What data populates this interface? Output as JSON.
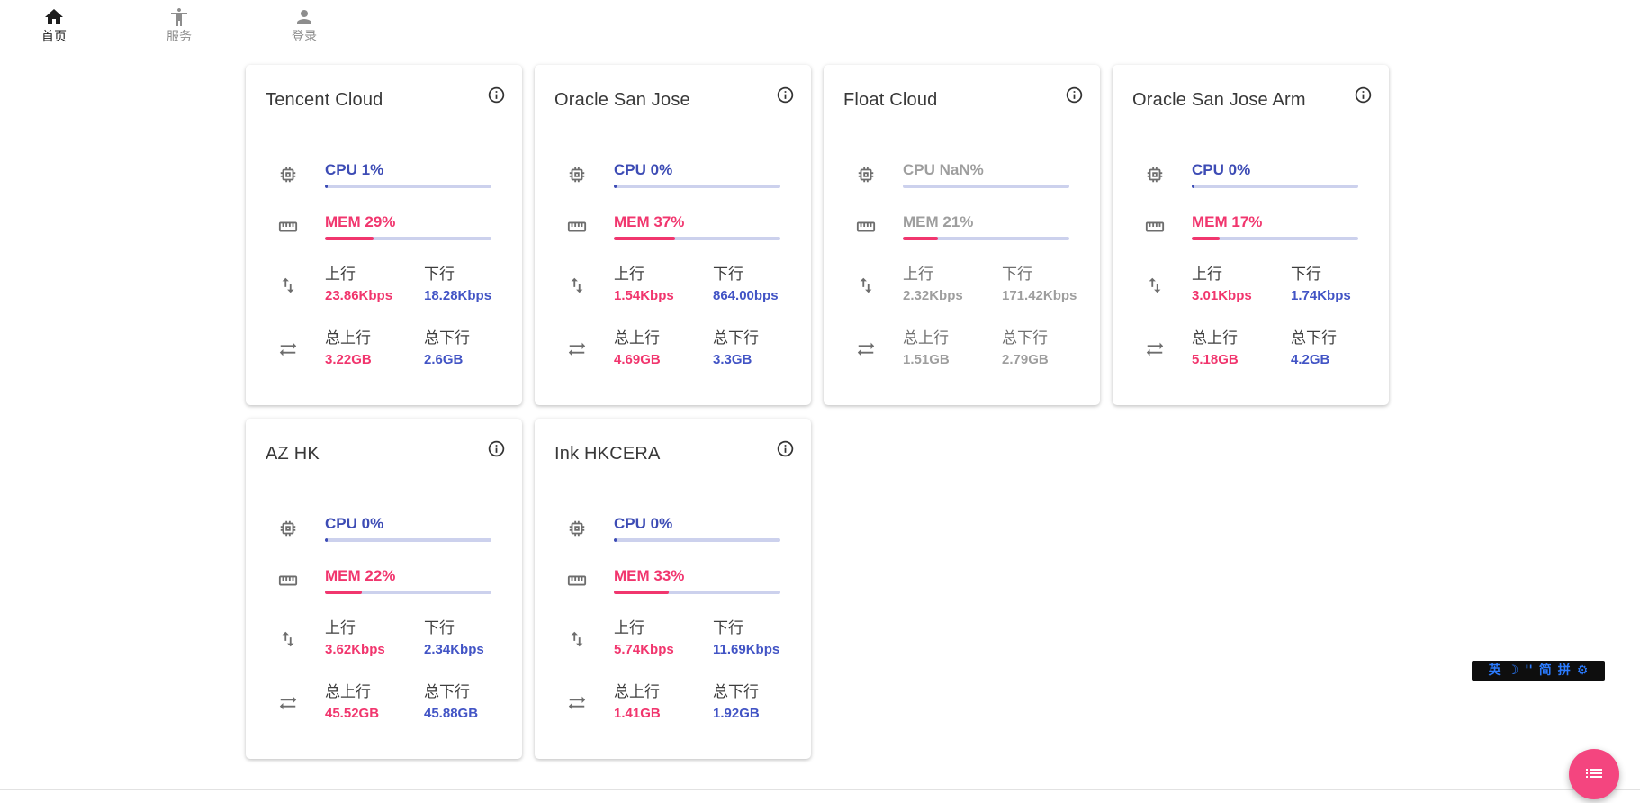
{
  "nav": {
    "home": {
      "label": "首页"
    },
    "services": {
      "label": "服务"
    },
    "login": {
      "label": "登录"
    }
  },
  "labels": {
    "up": "上行",
    "down": "下行",
    "total_up": "总上行",
    "total_down": "总下行"
  },
  "colors": {
    "accent_blue": "#3d4cb5",
    "value_blue": "#4254c5",
    "accent_pink": "#f1366e",
    "offline_gray": "#9e9e9e",
    "bar_track": "#ccd1ed",
    "fab_pink": "#f4457f",
    "ime_blue": "#2b7bfe"
  },
  "servers": [
    {
      "name": "Tencent Cloud",
      "offline": false,
      "cpu_text": "CPU 1%",
      "cpu_pct": 1,
      "mem_text": "MEM 29%",
      "mem_pct": 29,
      "up": "23.86Kbps",
      "down": "18.28Kbps",
      "total_up": "3.22GB",
      "total_down": "2.6GB"
    },
    {
      "name": "Oracle San Jose",
      "offline": false,
      "cpu_text": "CPU 0%",
      "cpu_pct": 0,
      "mem_text": "MEM 37%",
      "mem_pct": 37,
      "up": "1.54Kbps",
      "down": "864.00bps",
      "total_up": "4.69GB",
      "total_down": "3.3GB"
    },
    {
      "name": "Float Cloud",
      "offline": true,
      "cpu_text": "CPU NaN%",
      "cpu_pct": null,
      "mem_text": "MEM 21%",
      "mem_pct": 21,
      "up": "2.32Kbps",
      "down": "171.42Kbps",
      "total_up": "1.51GB",
      "total_down": "2.79GB"
    },
    {
      "name": "Oracle San Jose Arm",
      "offline": false,
      "cpu_text": "CPU 0%",
      "cpu_pct": 0,
      "mem_text": "MEM 17%",
      "mem_pct": 17,
      "up": "3.01Kbps",
      "down": "1.74Kbps",
      "total_up": "5.18GB",
      "total_down": "4.2GB"
    },
    {
      "name": "AZ HK",
      "offline": false,
      "cpu_text": "CPU 0%",
      "cpu_pct": 0,
      "mem_text": "MEM 22%",
      "mem_pct": 22,
      "up": "3.62Kbps",
      "down": "2.34Kbps",
      "total_up": "45.52GB",
      "total_down": "45.88GB"
    },
    {
      "name": "Ink HKCERA",
      "offline": false,
      "cpu_text": "CPU 0%",
      "cpu_pct": 0,
      "mem_text": "MEM 33%",
      "mem_pct": 33,
      "up": "5.74Kbps",
      "down": "11.69Kbps",
      "total_up": "1.41GB",
      "total_down": "1.92GB"
    }
  ],
  "ime": {
    "items": [
      "英",
      "☽",
      "''",
      "简",
      "拼",
      "⚙"
    ]
  }
}
